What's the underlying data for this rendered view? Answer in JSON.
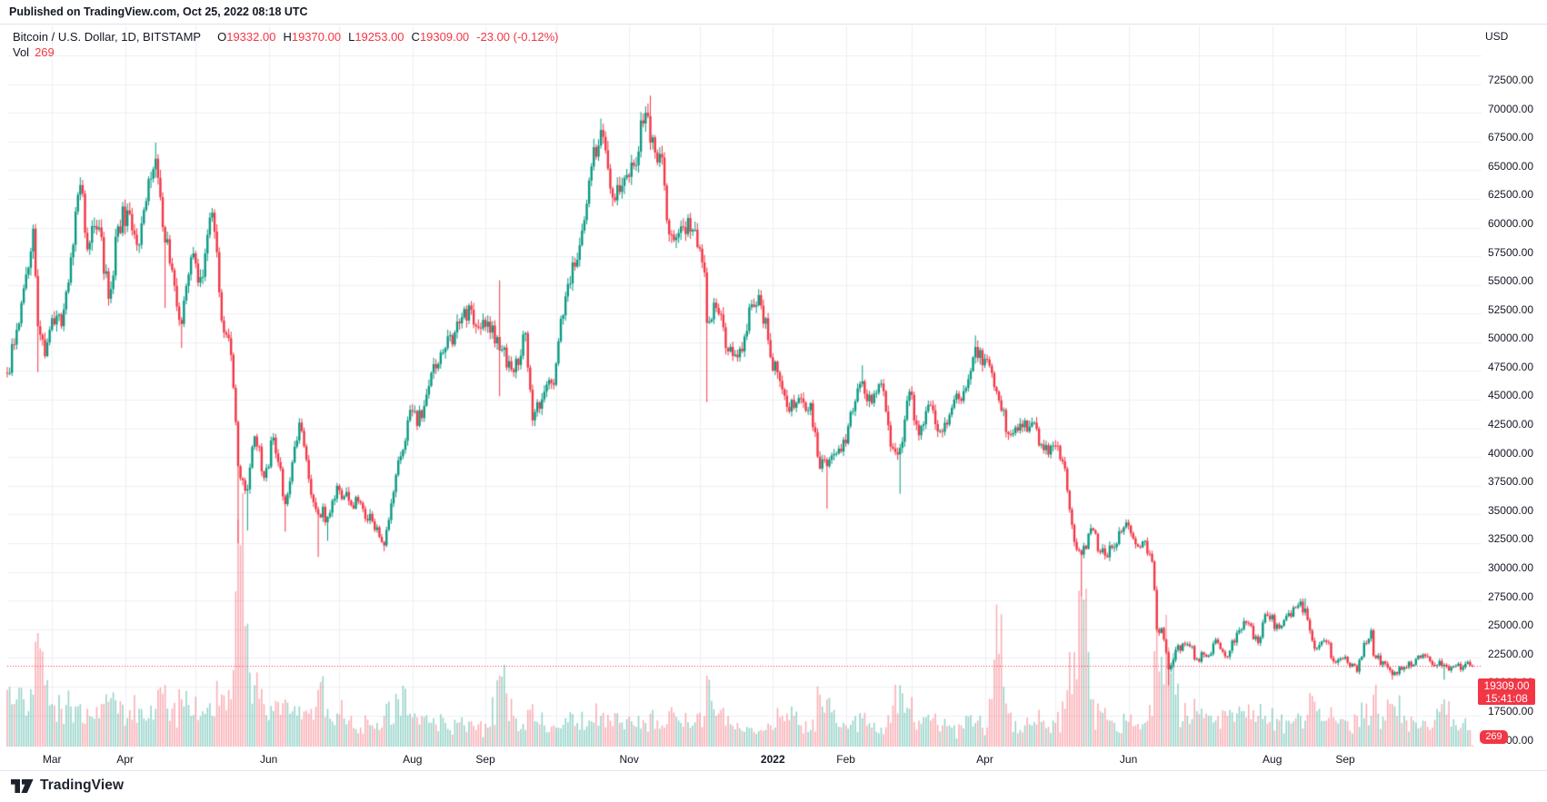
{
  "header": {
    "published_line": "Published on TradingView.com, Oct 25, 2022 08:18 UTC"
  },
  "legend": {
    "symbol": "Bitcoin / U.S. Dollar, 1D, BITSTAMP",
    "o_label": "O",
    "o": "19332.00",
    "h_label": "H",
    "h": "19370.00",
    "l_label": "L",
    "l": "19253.00",
    "c_label": "C",
    "c": "19309.00",
    "change": "-23.00 (-0.12%)",
    "vol_label": "Vol",
    "vol_value": "269"
  },
  "price_axis": {
    "unit": "USD",
    "labels": [
      "72500.00",
      "70000.00",
      "67500.00",
      "65000.00",
      "62500.00",
      "60000.00",
      "57500.00",
      "55000.00",
      "52500.00",
      "50000.00",
      "47500.00",
      "45000.00",
      "42500.00",
      "40000.00",
      "37500.00",
      "35000.00",
      "32500.00",
      "30000.00",
      "27500.00",
      "25000.00",
      "22500.00",
      "20000.00",
      "17500.00",
      "15000.00"
    ]
  },
  "time_axis": {
    "months": [
      {
        "label": "Mar",
        "date": "2021-03-01"
      },
      {
        "label": "Apr",
        "date": "2021-04-01"
      },
      {
        "label": "Jun",
        "date": "2021-06-01"
      },
      {
        "label": "Aug",
        "date": "2021-08-01"
      },
      {
        "label": "Sep",
        "date": "2021-09-01"
      },
      {
        "label": "Nov",
        "date": "2021-11-01"
      },
      {
        "label": "2022",
        "date": "2022-01-01"
      },
      {
        "label": "Feb",
        "date": "2022-02-01"
      },
      {
        "label": "Apr",
        "date": "2022-04-01"
      },
      {
        "label": "Jun",
        "date": "2022-06-01"
      },
      {
        "label": "Aug",
        "date": "2022-08-01"
      },
      {
        "label": "Sep",
        "date": "2022-09-01"
      }
    ]
  },
  "price_tag": {
    "price": "19309.00",
    "countdown": "15:41:08"
  },
  "volume_tag": {
    "value": "269"
  },
  "footer": {
    "brand": "TradingView"
  },
  "colors": {
    "up": "#089981",
    "down": "#f23645",
    "vol_up": "rgba(8,153,129,0.42)",
    "vol_down": "rgba(242,54,69,0.40)",
    "grid": "#eceff5",
    "tag": "#f23645",
    "text": "#131722",
    "border": "#e0e3eb"
  },
  "chart_data": {
    "type": "candlestick+volume",
    "title": "Bitcoin / U.S. Dollar",
    "interval": "1D",
    "exchange": "BITSTAMP",
    "quote_unit": "USD",
    "x_range": {
      "start": "2021-02-10",
      "end": "2022-10-25"
    },
    "y_ticks": [
      15000,
      17500,
      20000,
      22500,
      25000,
      27500,
      30000,
      32500,
      35000,
      37500,
      40000,
      42500,
      45000,
      47500,
      50000,
      52500,
      55000,
      57500,
      60000,
      62500,
      65000,
      67500,
      70000,
      72500
    ],
    "grid": true,
    "last_bar": {
      "open": 19332,
      "high": 19370,
      "low": 19253,
      "close": 19309,
      "change": -23.0,
      "change_pct": -0.12,
      "volume": 269
    },
    "current_price_line": 19309,
    "anchors_format": [
      "date",
      "close",
      "volume",
      "low_override(optional)",
      "high_override(optional)"
    ],
    "anchors": [
      [
        "2021-02-10",
        44800,
        12000
      ],
      [
        "2021-02-13",
        47300,
        9000
      ],
      [
        "2021-02-17",
        52200,
        10000
      ],
      [
        "2021-02-21",
        57400,
        11000
      ],
      [
        "2021-02-23",
        48900,
        24000,
        44900
      ],
      [
        "2021-02-26",
        46300,
        13000
      ],
      [
        "2021-03-01",
        49600,
        9000
      ],
      [
        "2021-03-05",
        48900,
        8000
      ],
      [
        "2021-03-09",
        54900,
        8500
      ],
      [
        "2021-03-13",
        61200,
        9000
      ],
      [
        "2021-03-16",
        55600,
        8000
      ],
      [
        "2021-03-21",
        57500,
        6000
      ],
      [
        "2021-03-25",
        51300,
        9500
      ],
      [
        "2021-03-29",
        57600,
        7000
      ],
      [
        "2021-04-02",
        59000,
        6000
      ],
      [
        "2021-04-07",
        56000,
        8000
      ],
      [
        "2021-04-10",
        59800,
        5500
      ],
      [
        "2021-04-14",
        63500,
        8000,
        null,
        64900
      ],
      [
        "2021-04-18",
        56200,
        13000,
        50500
      ],
      [
        "2021-04-21",
        53800,
        8000
      ],
      [
        "2021-04-25",
        49100,
        10000,
        47000
      ],
      [
        "2021-04-29",
        54900,
        6500
      ],
      [
        "2021-05-04",
        53200,
        7500
      ],
      [
        "2021-05-08",
        58800,
        6500
      ],
      [
        "2021-05-12",
        49400,
        11000
      ],
      [
        "2021-05-16",
        46400,
        10000
      ],
      [
        "2021-05-19",
        36700,
        48000,
        30000
      ],
      [
        "2021-05-23",
        34700,
        26000,
        31100
      ],
      [
        "2021-05-26",
        39300,
        13000
      ],
      [
        "2021-05-30",
        35700,
        9000
      ],
      [
        "2021-06-03",
        39200,
        7500
      ],
      [
        "2021-06-08",
        33400,
        10000,
        31000
      ],
      [
        "2021-06-14",
        40500,
        8500
      ],
      [
        "2021-06-18",
        35600,
        7000
      ],
      [
        "2021-06-22",
        32500,
        12000,
        28800
      ],
      [
        "2021-06-26",
        32300,
        8000,
        30200
      ],
      [
        "2021-06-30",
        35000,
        7000
      ],
      [
        "2021-07-05",
        33700,
        5500
      ],
      [
        "2021-07-10",
        33500,
        4000
      ],
      [
        "2021-07-15",
        31900,
        4500
      ],
      [
        "2021-07-20",
        29800,
        6500,
        29300
      ],
      [
        "2021-07-26",
        37200,
        10000
      ],
      [
        "2021-07-31",
        41600,
        7000
      ],
      [
        "2021-08-05",
        40900,
        6500
      ],
      [
        "2021-08-10",
        45600,
        6000
      ],
      [
        "2021-08-15",
        47000,
        5000
      ],
      [
        "2021-08-20",
        49300,
        5000
      ],
      [
        "2021-08-23",
        50400,
        4500
      ],
      [
        "2021-08-28",
        48900,
        3500
      ],
      [
        "2021-09-02",
        49300,
        4000
      ],
      [
        "2021-09-07",
        46800,
        15000,
        42800,
        52900
      ],
      [
        "2021-09-13",
        44900,
        6500
      ],
      [
        "2021-09-18",
        48300,
        3500
      ],
      [
        "2021-09-21",
        40700,
        9000
      ],
      [
        "2021-09-26",
        43200,
        4500
      ],
      [
        "2021-09-30",
        43800,
        4500
      ],
      [
        "2021-10-05",
        51500,
        6000
      ],
      [
        "2021-10-10",
        54700,
        5000
      ],
      [
        "2021-10-15",
        61600,
        5500
      ],
      [
        "2021-10-20",
        66000,
        6500,
        null,
        67000
      ],
      [
        "2021-10-24",
        60900,
        5500
      ],
      [
        "2021-10-28",
        60600,
        5000
      ],
      [
        "2021-11-03",
        62900,
        4500
      ],
      [
        "2021-11-08",
        67500,
        5000
      ],
      [
        "2021-11-10",
        64900,
        7000,
        null,
        69000
      ],
      [
        "2021-11-15",
        63600,
        4500
      ],
      [
        "2021-11-18",
        56900,
        7500
      ],
      [
        "2021-11-23",
        57600,
        5000
      ],
      [
        "2021-11-28",
        57300,
        4500
      ],
      [
        "2021-12-03",
        53600,
        6500
      ],
      [
        "2021-12-04",
        49200,
        15000,
        42300
      ],
      [
        "2021-12-08",
        50500,
        6500
      ],
      [
        "2021-12-13",
        46700,
        6500
      ],
      [
        "2021-12-17",
        46200,
        5000
      ],
      [
        "2021-12-23",
        50800,
        4000
      ],
      [
        "2021-12-27",
        50700,
        3500
      ],
      [
        "2021-12-31",
        46200,
        4500
      ],
      [
        "2022-01-05",
        43400,
        6500
      ],
      [
        "2022-01-10",
        41800,
        6500
      ],
      [
        "2022-01-13",
        42600,
        4500
      ],
      [
        "2022-01-17",
        42200,
        3500
      ],
      [
        "2022-01-21",
        36500,
        11000
      ],
      [
        "2022-01-24",
        36700,
        10000,
        33000
      ],
      [
        "2022-01-28",
        37800,
        5000
      ],
      [
        "2022-02-01",
        38700,
        4500
      ],
      [
        "2022-02-04",
        41500,
        5500
      ],
      [
        "2022-02-08",
        44100,
        6000,
        null,
        45500
      ],
      [
        "2022-02-12",
        42200,
        4000
      ],
      [
        "2022-02-16",
        43900,
        4000
      ],
      [
        "2022-02-20",
        38400,
        5000
      ],
      [
        "2022-02-24",
        38300,
        13000,
        34300
      ],
      [
        "2022-02-28",
        43200,
        8000
      ],
      [
        "2022-03-04",
        39400,
        5500
      ],
      [
        "2022-03-09",
        42000,
        5500
      ],
      [
        "2022-03-14",
        39700,
        4500
      ],
      [
        "2022-03-18",
        41800,
        4000
      ],
      [
        "2022-03-22",
        42400,
        4500
      ],
      [
        "2022-03-28",
        47100,
        5000,
        null,
        48100
      ],
      [
        "2022-03-31",
        45500,
        4000
      ],
      [
        "2022-04-02",
        46000,
        4000
      ],
      [
        "2022-04-06",
        43200,
        30000
      ],
      [
        "2022-04-11",
        39500,
        7000
      ],
      [
        "2022-04-16",
        40400,
        3500
      ],
      [
        "2022-04-21",
        40500,
        4500
      ],
      [
        "2022-04-26",
        38100,
        5500
      ],
      [
        "2022-05-01",
        38500,
        5000
      ],
      [
        "2022-05-05",
        36500,
        8000
      ],
      [
        "2022-05-09",
        30100,
        20000,
        30000
      ],
      [
        "2022-05-12",
        29000,
        32000,
        25400
      ],
      [
        "2022-05-16",
        31300,
        10000
      ],
      [
        "2022-05-20",
        29200,
        7500
      ],
      [
        "2022-05-25",
        29600,
        5500
      ],
      [
        "2022-05-31",
        31800,
        5500
      ],
      [
        "2022-06-04",
        29900,
        4500
      ],
      [
        "2022-06-08",
        30200,
        5000
      ],
      [
        "2022-06-11",
        28400,
        6500
      ],
      [
        "2022-06-13",
        22500,
        30000
      ],
      [
        "2022-06-15",
        22600,
        19000
      ],
      [
        "2022-06-18",
        19000,
        21000,
        17600
      ],
      [
        "2022-06-21",
        20700,
        11000
      ],
      [
        "2022-06-26",
        21200,
        6500
      ],
      [
        "2022-06-30",
        19900,
        7500
      ],
      [
        "2022-07-05",
        20200,
        6500
      ],
      [
        "2022-07-08",
        21600,
        5500
      ],
      [
        "2022-07-13",
        20100,
        6500
      ],
      [
        "2022-07-18",
        22400,
        8500
      ],
      [
        "2022-07-20",
        23200,
        7500
      ],
      [
        "2022-07-26",
        21300,
        6500
      ],
      [
        "2022-07-29",
        23800,
        6500
      ],
      [
        "2022-08-04",
        22600,
        5500
      ],
      [
        "2022-08-08",
        23900,
        5500
      ],
      [
        "2022-08-11",
        24400,
        6000
      ],
      [
        "2022-08-15",
        24300,
        5500,
        null,
        25200
      ],
      [
        "2022-08-19",
        20800,
        9500
      ],
      [
        "2022-08-24",
        21400,
        5500
      ],
      [
        "2022-08-28",
        19600,
        5500
      ],
      [
        "2022-09-01",
        20100,
        5500
      ],
      [
        "2022-09-06",
        18800,
        6500
      ],
      [
        "2022-09-09",
        21300,
        6000
      ],
      [
        "2022-09-12",
        22400,
        6500
      ],
      [
        "2022-09-13",
        20200,
        11000
      ],
      [
        "2022-09-18",
        19500,
        5500
      ],
      [
        "2022-09-21",
        18500,
        9000,
        18100
      ],
      [
        "2022-09-26",
        19200,
        6500
      ],
      [
        "2022-09-30",
        19400,
        5500
      ],
      [
        "2022-10-04",
        20300,
        5500
      ],
      [
        "2022-10-08",
        19400,
        4000
      ],
      [
        "2022-10-13",
        19400,
        10000,
        18100
      ],
      [
        "2022-10-18",
        19300,
        4500
      ],
      [
        "2022-10-21",
        19200,
        5000
      ],
      [
        "2022-10-24",
        19332,
        3500
      ],
      [
        "2022-10-25",
        19309,
        269,
        19253,
        19370
      ]
    ]
  }
}
